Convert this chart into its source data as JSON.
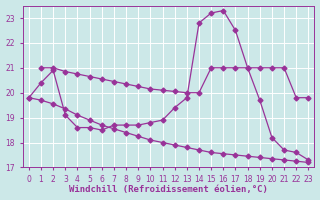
{
  "xlabel": "Windchill (Refroidissement éolien,°C)",
  "background_color": "#cce8e8",
  "grid_color": "#aacccc",
  "line_color": "#993399",
  "xlim": [
    -0.5,
    23.5
  ],
  "ylim": [
    17,
    23.5
  ],
  "yticks": [
    17,
    18,
    19,
    20,
    21,
    22,
    23
  ],
  "xticks": [
    0,
    1,
    2,
    3,
    4,
    5,
    6,
    7,
    8,
    9,
    10,
    11,
    12,
    13,
    14,
    15,
    16,
    17,
    18,
    19,
    20,
    21,
    22,
    23
  ],
  "series1_x": [
    0,
    1,
    2,
    3,
    4,
    5,
    6,
    7,
    8,
    9,
    10,
    11,
    12,
    13,
    14,
    15,
    16,
    17,
    18,
    19,
    20,
    21,
    22,
    23
  ],
  "series1_y": [
    19.8,
    20.4,
    20.9,
    19.1,
    18.6,
    18.6,
    18.5,
    18.7,
    18.7,
    18.7,
    18.8,
    18.9,
    19.4,
    19.8,
    22.8,
    23.2,
    23.3,
    22.5,
    21.0,
    19.7,
    18.2,
    17.7,
    17.6,
    17.3
  ],
  "series2_x": [
    1,
    2,
    3,
    4,
    5,
    6,
    7,
    8,
    9,
    10,
    11,
    12,
    13,
    14,
    15,
    16,
    17,
    18,
    19,
    20,
    21,
    22,
    23
  ],
  "series2_y": [
    21.0,
    21.0,
    20.85,
    20.75,
    20.65,
    20.55,
    20.45,
    20.35,
    20.25,
    20.15,
    20.1,
    20.05,
    20.0,
    20.0,
    21.0,
    21.0,
    21.0,
    21.0,
    21.0,
    21.0,
    21.0,
    19.8,
    19.8
  ],
  "series3_x": [
    0,
    1,
    2,
    3,
    4,
    5,
    6,
    7,
    8,
    9,
    10,
    11,
    12,
    13,
    14,
    15,
    16,
    17,
    18,
    19,
    20,
    21,
    22,
    23
  ],
  "series3_y": [
    19.8,
    19.7,
    19.55,
    19.35,
    19.1,
    18.9,
    18.7,
    18.55,
    18.4,
    18.25,
    18.1,
    18.0,
    17.9,
    17.8,
    17.7,
    17.6,
    17.55,
    17.5,
    17.45,
    17.4,
    17.35,
    17.3,
    17.25,
    17.2
  ],
  "markersize": 2.5,
  "linewidth": 0.9,
  "tick_fontsize": 5.5,
  "xlabel_fontsize": 6.5
}
